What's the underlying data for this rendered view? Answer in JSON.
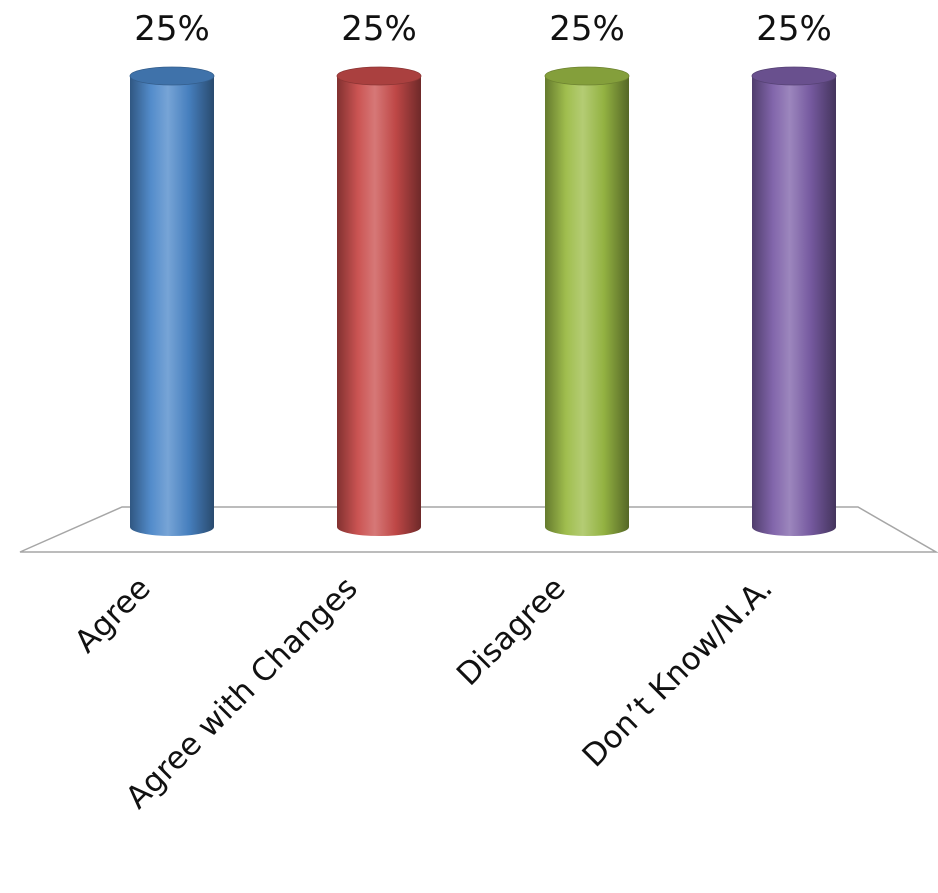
{
  "chart_data": {
    "type": "bar",
    "style": "3d-cylinder",
    "categories": [
      "Agree",
      "Agree with Changes",
      "Disagree",
      "Don’t Know/N.A."
    ],
    "values": [
      25,
      25,
      25,
      25
    ],
    "data_labels": [
      "25%",
      "25%",
      "25%",
      "25%"
    ],
    "colors": [
      "#4a86c8",
      "#c84b4a",
      "#9bbb45",
      "#7b5ea7"
    ],
    "ylim": [
      0,
      25
    ],
    "unit": "%",
    "grid": false,
    "legend": "none"
  }
}
